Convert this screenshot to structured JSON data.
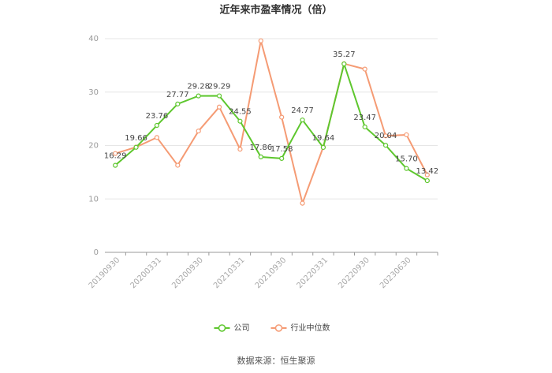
{
  "chart_data": {
    "type": "line",
    "title": "近年来市盈率情况（倍）",
    "source": "数据来源：恒生聚源",
    "categories": [
      "20190930",
      null,
      "20200331",
      null,
      "20200930",
      null,
      "20210331",
      null,
      "20210930",
      null,
      "20220331",
      null,
      "20220930",
      null,
      "20230630",
      null
    ],
    "series": [
      {
        "name": "公司",
        "color": "#5ec72e",
        "values": [
          16.29,
          19.66,
          23.76,
          27.77,
          29.28,
          29.29,
          24.55,
          17.86,
          17.58,
          24.77,
          19.64,
          35.27,
          23.47,
          20.04,
          15.7,
          13.42
        ],
        "value_labels": [
          "16.29",
          "19.66",
          "23.76",
          "27.77",
          "29.28",
          "29.29",
          "24.55",
          "17.86",
          "17.58",
          "24.77",
          "19.64",
          "35.27",
          "23.47",
          "20.04",
          "15.70",
          "13.42"
        ]
      },
      {
        "name": "行业中位数",
        "color": "#f59b74",
        "values": [
          18.5,
          19.7,
          21.5,
          16.3,
          22.7,
          27.2,
          19.3,
          39.6,
          25.3,
          9.2,
          19.7,
          35.3,
          34.3,
          21.8,
          22.0,
          14.5
        ]
      }
    ],
    "ylim": [
      0,
      40
    ],
    "yticks": [
      0,
      10,
      20,
      30,
      40
    ],
    "grid": true,
    "legend": "bottom"
  }
}
